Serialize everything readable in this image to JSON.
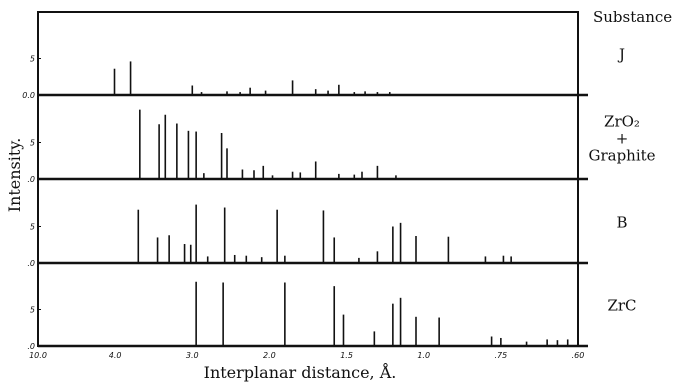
{
  "chart_data": {
    "type": "bar",
    "title": "",
    "xlabel": "Interplanar distance, Å.",
    "ylabel": "Intensity.",
    "legend_header": "Substance",
    "x_tick_labels": [
      {
        "value": 10.0,
        "label": "10.0"
      },
      {
        "value": 4.0,
        "label": "4.0"
      },
      {
        "value": 3.0,
        "label": "3.0"
      },
      {
        "value": 2.0,
        "label": "2.0"
      },
      {
        "value": 1.5,
        "label": "1.5"
      },
      {
        "value": 1.0,
        "label": "1.0"
      },
      {
        "value": 0.75,
        "label": ".75"
      },
      {
        "value": 0.6,
        "label": ".60"
      }
    ],
    "panels": [
      {
        "name": "J",
        "name_lines": [
          "J"
        ],
        "y_tick_labels": [
          {
            "value": 0,
            "label": "0.0"
          },
          {
            "value": 5,
            "label": "5"
          }
        ],
        "ylim": [
          0,
          10
        ],
        "peaks": [
          {
            "d": 4.05,
            "intensity": 3.6
          },
          {
            "d": 3.8,
            "intensity": 4.6
          },
          {
            "d": 3.0,
            "intensity": 1.3
          },
          {
            "d": 2.88,
            "intensity": 0.4
          },
          {
            "d": 2.55,
            "intensity": 0.5
          },
          {
            "d": 2.38,
            "intensity": 0.4
          },
          {
            "d": 2.25,
            "intensity": 1.0
          },
          {
            "d": 2.05,
            "intensity": 0.6
          },
          {
            "d": 1.85,
            "intensity": 2.0
          },
          {
            "d": 1.7,
            "intensity": 0.8
          },
          {
            "d": 1.62,
            "intensity": 0.6
          },
          {
            "d": 1.55,
            "intensity": 1.4
          },
          {
            "d": 1.45,
            "intensity": 0.4
          },
          {
            "d": 1.38,
            "intensity": 0.5
          },
          {
            "d": 1.3,
            "intensity": 0.4
          },
          {
            "d": 1.22,
            "intensity": 0.4
          }
        ]
      },
      {
        "name": "ZrO2 + Graphite",
        "name_lines": [
          "ZrO₂",
          "+",
          "Graphite"
        ],
        "y_tick_labels": [
          {
            "value": 0,
            "label": ".0"
          },
          {
            "value": 5,
            "label": "5"
          }
        ],
        "ylim": [
          0,
          10
        ],
        "peaks": [
          {
            "d": 3.68,
            "intensity": 9.5
          },
          {
            "d": 3.43,
            "intensity": 7.5
          },
          {
            "d": 3.35,
            "intensity": 8.8
          },
          {
            "d": 3.2,
            "intensity": 7.6
          },
          {
            "d": 3.05,
            "intensity": 6.6
          },
          {
            "d": 2.95,
            "intensity": 6.5
          },
          {
            "d": 2.85,
            "intensity": 0.8
          },
          {
            "d": 2.62,
            "intensity": 6.3
          },
          {
            "d": 2.55,
            "intensity": 4.2
          },
          {
            "d": 2.35,
            "intensity": 1.3
          },
          {
            "d": 2.2,
            "intensity": 1.2
          },
          {
            "d": 2.08,
            "intensity": 1.8
          },
          {
            "d": 1.98,
            "intensity": 0.5
          },
          {
            "d": 1.85,
            "intensity": 1.0
          },
          {
            "d": 1.8,
            "intensity": 0.9
          },
          {
            "d": 1.7,
            "intensity": 2.4
          },
          {
            "d": 1.55,
            "intensity": 0.7
          },
          {
            "d": 1.45,
            "intensity": 0.6
          },
          {
            "d": 1.4,
            "intensity": 1.0
          },
          {
            "d": 1.3,
            "intensity": 1.8
          },
          {
            "d": 1.18,
            "intensity": 0.5
          }
        ]
      },
      {
        "name": "B",
        "name_lines": [
          "B"
        ],
        "y_tick_labels": [
          {
            "value": 0,
            "label": ".0"
          },
          {
            "value": 5,
            "label": "5"
          }
        ],
        "ylim": [
          0,
          10
        ],
        "peaks": [
          {
            "d": 3.7,
            "intensity": 7.3
          },
          {
            "d": 3.45,
            "intensity": 3.5
          },
          {
            "d": 3.3,
            "intensity": 3.8
          },
          {
            "d": 3.1,
            "intensity": 2.6
          },
          {
            "d": 3.02,
            "intensity": 2.5
          },
          {
            "d": 2.95,
            "intensity": 8.0
          },
          {
            "d": 2.8,
            "intensity": 0.9
          },
          {
            "d": 2.58,
            "intensity": 7.6
          },
          {
            "d": 2.45,
            "intensity": 1.1
          },
          {
            "d": 2.3,
            "intensity": 1.0
          },
          {
            "d": 2.1,
            "intensity": 0.8
          },
          {
            "d": 1.95,
            "intensity": 7.3
          },
          {
            "d": 1.9,
            "intensity": 1.0
          },
          {
            "d": 1.65,
            "intensity": 7.2
          },
          {
            "d": 1.58,
            "intensity": 3.5
          },
          {
            "d": 1.42,
            "intensity": 0.7
          },
          {
            "d": 1.3,
            "intensity": 1.6
          },
          {
            "d": 1.2,
            "intensity": 5.0
          },
          {
            "d": 1.15,
            "intensity": 5.5
          },
          {
            "d": 1.05,
            "intensity": 3.7
          },
          {
            "d": 0.92,
            "intensity": 3.6
          },
          {
            "d": 0.8,
            "intensity": 0.9
          },
          {
            "d": 0.745,
            "intensity": 1.0
          },
          {
            "d": 0.73,
            "intensity": 0.9
          }
        ]
      },
      {
        "name": "ZrC",
        "name_lines": [
          "ZrC"
        ],
        "y_tick_labels": [
          {
            "value": 0,
            "label": ".0"
          },
          {
            "value": 5,
            "label": "5"
          }
        ],
        "ylim": [
          0,
          10
        ],
        "peaks": [
          {
            "d": 2.95,
            "intensity": 8.8
          },
          {
            "d": 2.6,
            "intensity": 8.7
          },
          {
            "d": 1.9,
            "intensity": 8.7
          },
          {
            "d": 1.58,
            "intensity": 8.2
          },
          {
            "d": 1.52,
            "intensity": 4.3
          },
          {
            "d": 1.32,
            "intensity": 2.0
          },
          {
            "d": 1.2,
            "intensity": 5.8
          },
          {
            "d": 1.15,
            "intensity": 6.6
          },
          {
            "d": 1.05,
            "intensity": 4.0
          },
          {
            "d": 0.95,
            "intensity": 3.9
          },
          {
            "d": 0.78,
            "intensity": 1.3
          },
          {
            "d": 0.75,
            "intensity": 1.1
          },
          {
            "d": 0.7,
            "intensity": 0.6
          },
          {
            "d": 0.66,
            "intensity": 0.9
          },
          {
            "d": 0.64,
            "intensity": 0.8
          },
          {
            "d": 0.62,
            "intensity": 0.9
          },
          {
            "d": 0.6,
            "intensity": 0.8
          }
        ]
      }
    ]
  }
}
